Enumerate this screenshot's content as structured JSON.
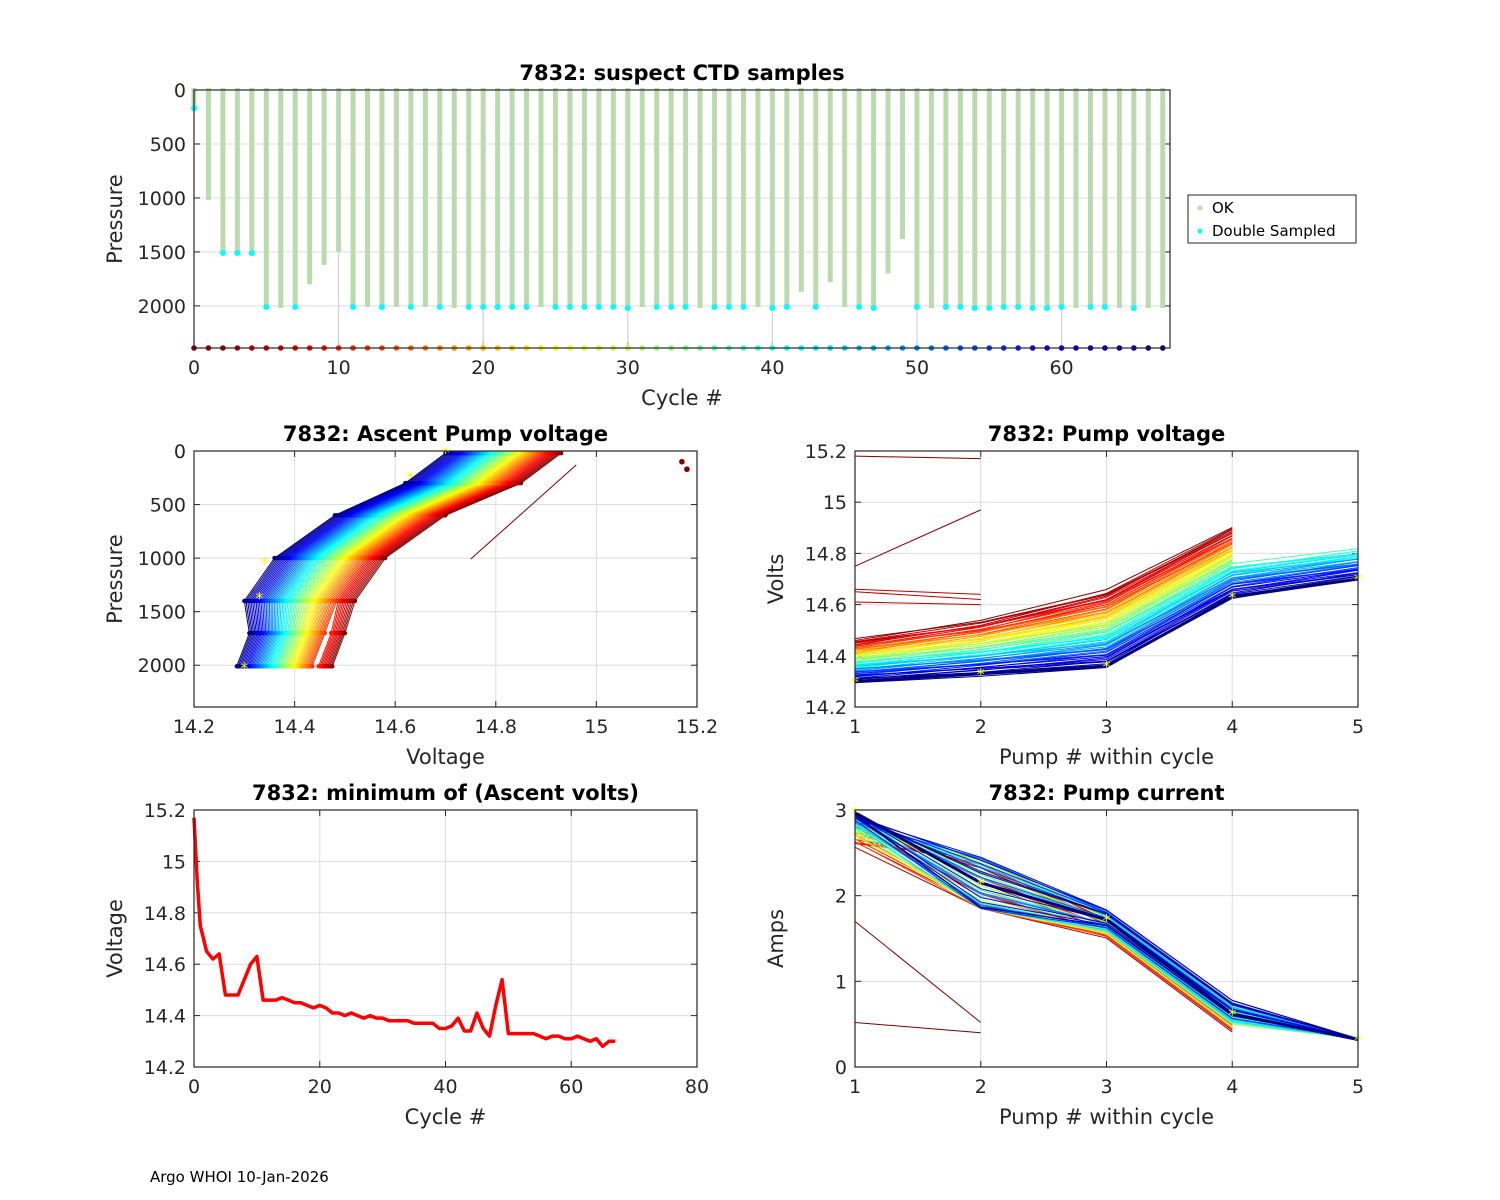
{
  "footer": "Argo WHOI 10-Jan-2026",
  "chart_data": [
    {
      "id": "suspect",
      "type": "bar",
      "title": "7832: suspect CTD samples",
      "xlabel": "Cycle #",
      "ylabel": "Pressure",
      "xlim": [
        0,
        67.5
      ],
      "ylim": [
        0,
        2390
      ],
      "y_reversed": true,
      "xticks": [
        0,
        10,
        20,
        30,
        40,
        50,
        60
      ],
      "yticks": [
        0,
        500,
        1000,
        1500,
        2000
      ],
      "grid": true,
      "legend": {
        "placement": "outside-right",
        "entries": [
          {
            "label": "OK",
            "color": "#bcdab0"
          },
          {
            "label": "Double Sampled",
            "color": "#00ffff"
          }
        ]
      },
      "cycles": [
        0,
        1,
        2,
        3,
        4,
        5,
        6,
        7,
        8,
        9,
        10,
        11,
        12,
        13,
        14,
        15,
        16,
        17,
        18,
        19,
        20,
        21,
        22,
        23,
        24,
        25,
        26,
        27,
        28,
        29,
        30,
        31,
        32,
        33,
        34,
        35,
        36,
        37,
        38,
        39,
        40,
        41,
        42,
        43,
        44,
        45,
        46,
        47,
        48,
        49,
        50,
        51,
        52,
        53,
        54,
        55,
        56,
        57,
        58,
        59,
        60,
        61,
        62,
        63,
        64,
        65,
        66,
        67
      ],
      "max_pressure": [
        170,
        1020,
        1510,
        1510,
        1510,
        2010,
        2020,
        2010,
        1800,
        1620,
        1500,
        2020,
        2010,
        2020,
        2010,
        2020,
        2010,
        2010,
        2020,
        2020,
        2010,
        2010,
        2010,
        2010,
        2010,
        2010,
        2010,
        2010,
        2020,
        2010,
        2020,
        2010,
        2010,
        2010,
        2010,
        2020,
        2020,
        2010,
        2010,
        2010,
        2010,
        2010,
        1870,
        2010,
        1780,
        2010,
        2010,
        2010,
        1700,
        1380,
        2010,
        2020,
        2010,
        2020,
        2010,
        2010,
        2020,
        2010,
        2010,
        2020,
        2010,
        2020,
        2010,
        2010,
        2020,
        2010,
        2020,
        2020
      ],
      "double_sampled": [
        [
          0,
          170
        ],
        [
          2,
          1510
        ],
        [
          3,
          1510
        ],
        [
          4,
          1510
        ],
        [
          5,
          2010
        ],
        [
          7,
          2010
        ],
        [
          11,
          2010
        ],
        [
          13,
          2010
        ],
        [
          15,
          2010
        ],
        [
          17,
          2010
        ],
        [
          19,
          2010
        ],
        [
          20,
          2010
        ],
        [
          21,
          2010
        ],
        [
          22,
          2010
        ],
        [
          23,
          2010
        ],
        [
          25,
          2010
        ],
        [
          26,
          2010
        ],
        [
          27,
          2010
        ],
        [
          28,
          2010
        ],
        [
          29,
          2010
        ],
        [
          30,
          2020
        ],
        [
          32,
          2010
        ],
        [
          33,
          2010
        ],
        [
          34,
          2010
        ],
        [
          36,
          2010
        ],
        [
          37,
          2010
        ],
        [
          38,
          2010
        ],
        [
          40,
          2020
        ],
        [
          41,
          2010
        ],
        [
          43,
          2010
        ],
        [
          46,
          2010
        ],
        [
          47,
          2020
        ],
        [
          50,
          2010
        ],
        [
          52,
          2010
        ],
        [
          53,
          2010
        ],
        [
          54,
          2020
        ],
        [
          55,
          2020
        ],
        [
          56,
          2010
        ],
        [
          57,
          2010
        ],
        [
          58,
          2020
        ],
        [
          59,
          2020
        ],
        [
          60,
          2010
        ],
        [
          62,
          2010
        ],
        [
          63,
          2010
        ],
        [
          65,
          2020
        ]
      ]
    },
    {
      "id": "ascent",
      "type": "line",
      "title": "7832: Ascent Pump voltage",
      "xlabel": "Voltage",
      "ylabel": "Pressure",
      "xlim": [
        14.2,
        15.2
      ],
      "ylim": [
        0,
        2390
      ],
      "y_reversed": true,
      "xticks": [
        14.2,
        14.4,
        14.6,
        14.8,
        15,
        15.2
      ],
      "yticks": [
        0,
        500,
        1000,
        1500,
        2000
      ],
      "grid": true,
      "colormap": "jet (by cycle, red=early, blue=late)",
      "series_summary": "Per-cycle profiles: ~2000 dbar at 14.28-14.48 V, ~1000 dbar at 14.35-14.6 V, surface at 14.7-14.95 V; cycle 0 isolated points near 15.17-15.18 V at 100-170 dbar",
      "highlight_points": [
        [
          14.3,
          2020
        ],
        [
          14.34,
          1040
        ],
        [
          14.33,
          1370
        ],
        [
          14.63,
          240
        ],
        [
          14.7,
          10
        ]
      ]
    },
    {
      "id": "pumpvolt",
      "type": "line",
      "title": "7832: Pump voltage",
      "xlabel": "Pump # within cycle",
      "ylabel": "Volts",
      "xlim": [
        1,
        5
      ],
      "ylim": [
        14.2,
        15.2
      ],
      "xticks": [
        1,
        2,
        3,
        4,
        5
      ],
      "yticks": [
        14.2,
        14.4,
        14.6,
        14.8,
        15,
        15.2
      ],
      "grid": true,
      "latest_cycle": [
        14.3,
        14.33,
        14.36,
        14.63,
        14.7
      ],
      "early_cycle_band": [
        14.46,
        14.53,
        14.65,
        14.9,
        14.95
      ],
      "first_cycle_two_pump": [
        [
          15.18,
          15.17
        ],
        [
          14.75,
          14.97
        ]
      ]
    },
    {
      "id": "minvolt",
      "type": "line",
      "title": "7832: minimum of (Ascent volts)",
      "xlabel": "Cycle #",
      "ylabel": "Voltage",
      "xlim": [
        0,
        80
      ],
      "ylim": [
        14.2,
        15.2
      ],
      "xticks": [
        0,
        20,
        40,
        60,
        80
      ],
      "yticks": [
        14.2,
        14.4,
        14.6,
        14.8,
        15,
        15.2
      ],
      "grid": true,
      "color": "#ff0000",
      "x": [
        0,
        0.5,
        1,
        2,
        3,
        4,
        5,
        6,
        7,
        8,
        9,
        10,
        11,
        12,
        13,
        14,
        15,
        16,
        17,
        18,
        19,
        20,
        21,
        22,
        23,
        24,
        25,
        26,
        27,
        28,
        29,
        30,
        31,
        32,
        33,
        34,
        35,
        36,
        37,
        38,
        39,
        40,
        41,
        42,
        43,
        44,
        45,
        46,
        47,
        48,
        49,
        50,
        51,
        52,
        53,
        54,
        55,
        56,
        57,
        58,
        59,
        60,
        61,
        62,
        63,
        64,
        65,
        66,
        67
      ],
      "y": [
        15.17,
        14.93,
        14.75,
        14.65,
        14.62,
        14.64,
        14.48,
        14.48,
        14.48,
        14.54,
        14.6,
        14.63,
        14.46,
        14.46,
        14.46,
        14.47,
        14.46,
        14.45,
        14.45,
        14.44,
        14.43,
        14.44,
        14.43,
        14.41,
        14.41,
        14.4,
        14.41,
        14.4,
        14.39,
        14.4,
        14.39,
        14.39,
        14.38,
        14.38,
        14.38,
        14.38,
        14.37,
        14.37,
        14.37,
        14.37,
        14.35,
        14.35,
        14.36,
        14.39,
        14.34,
        14.34,
        14.41,
        14.35,
        14.32,
        14.44,
        14.54,
        14.33,
        14.33,
        14.33,
        14.33,
        14.33,
        14.32,
        14.31,
        14.32,
        14.32,
        14.31,
        14.31,
        14.32,
        14.31,
        14.3,
        14.31,
        14.28,
        14.3,
        14.3
      ]
    },
    {
      "id": "pumpcurr",
      "type": "line",
      "title": "7832: Pump current",
      "xlabel": "Pump # within cycle",
      "ylabel": "Amps",
      "xlim": [
        1,
        5
      ],
      "ylim": [
        0,
        3
      ],
      "xticks": [
        1,
        2,
        3,
        4,
        5
      ],
      "yticks": [
        0,
        1,
        2,
        3
      ],
      "grid": true,
      "latest_cycle": [
        2.97,
        2.15,
        1.72,
        0.62,
        0.32
      ],
      "first_cycle_two_pump": [
        [
          1.7,
          0.52
        ],
        [
          0.52,
          0.4
        ]
      ]
    }
  ]
}
